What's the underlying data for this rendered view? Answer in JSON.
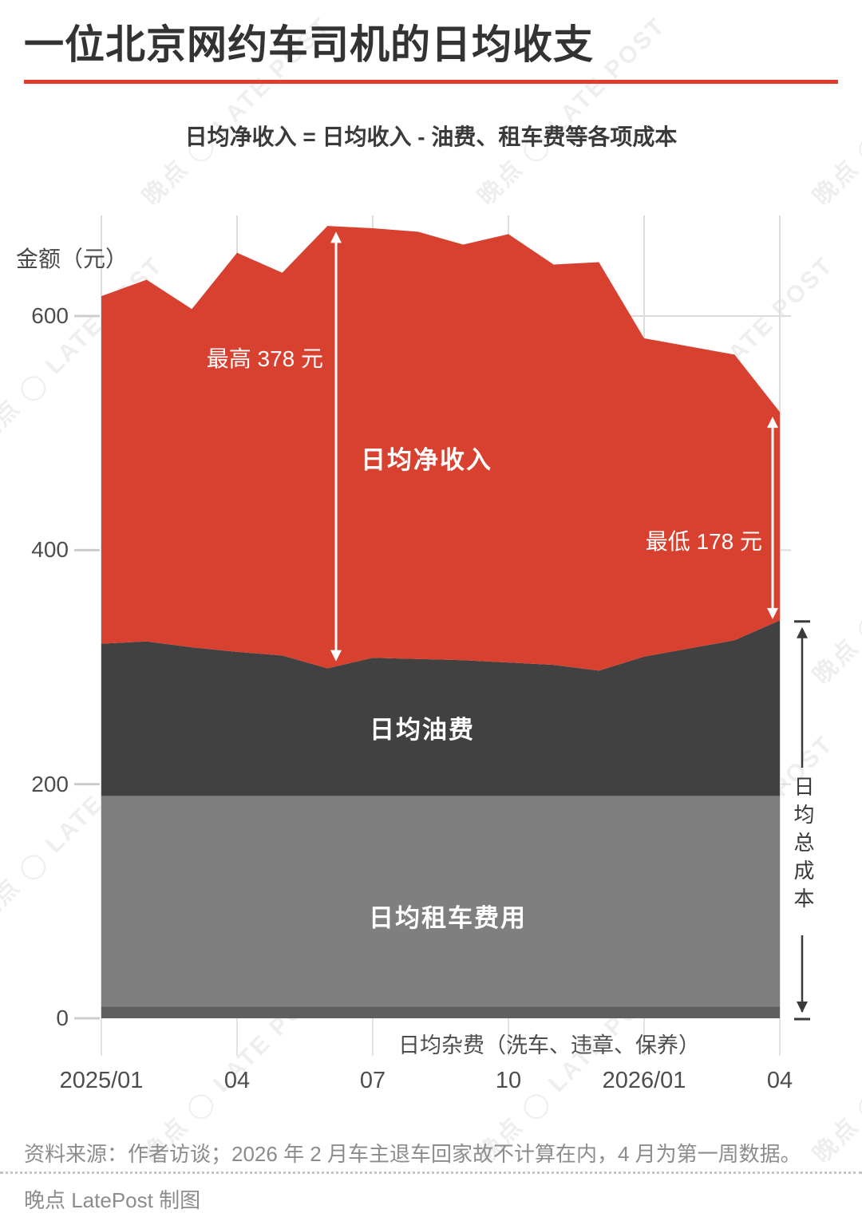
{
  "header": {
    "title": "一位北京网约车司机的日均收支",
    "subtitle": "日均净收入 = 日均收入 - 油费、租车费等各项成本",
    "rule_color": "#E03C2B"
  },
  "watermark": {
    "text": "晚点 ◯ LATE POST"
  },
  "chart_data": {
    "type": "area",
    "stacked": true,
    "ylabel": "金额（元）",
    "ylim": [
      0,
      686
    ],
    "grid": true,
    "y_ticks": [
      0,
      200,
      400,
      600
    ],
    "x_ticks": [
      {
        "m": 0,
        "label": "2025/01"
      },
      {
        "m": 3,
        "label": "04"
      },
      {
        "m": 6,
        "label": "07"
      },
      {
        "m": 9,
        "label": "10"
      },
      {
        "m": 12,
        "label": "2026/01"
      },
      {
        "m": 15,
        "label": "04"
      }
    ],
    "categories": [
      "2025/01",
      "2025/02",
      "2025/03",
      "2025/04",
      "2025/05",
      "2025/06",
      "2025/07",
      "2025/08",
      "2025/09",
      "2025/10",
      "2025/11",
      "2025/12",
      "2026/01",
      "2026/03",
      "2026/04"
    ],
    "month_index": [
      0,
      1,
      2,
      3,
      4,
      5,
      6,
      7,
      8,
      9,
      10,
      11,
      12,
      14,
      15
    ],
    "income_total": [
      617,
      631,
      606,
      654,
      637,
      677,
      675,
      672,
      661,
      670,
      644,
      646,
      581,
      567,
      518
    ],
    "total_cost": [
      320,
      322,
      317,
      313,
      310,
      299,
      308,
      307,
      306,
      304,
      302,
      297,
      309,
      323,
      340
    ],
    "net_income": [
      297,
      309,
      289,
      341,
      327,
      378,
      367,
      365,
      355,
      366,
      342,
      349,
      272,
      244,
      178
    ],
    "misc_top_value": 10,
    "rental_top_value": 190,
    "series": [
      {
        "name": "日均杂费（洗车、违章、保养）",
        "role": "misc",
        "color": "#5F5F5F"
      },
      {
        "name": "日均租车费用",
        "role": "rental",
        "color": "#7F7F7F"
      },
      {
        "name": "日均油费",
        "role": "oil",
        "color": "#414141"
      },
      {
        "name": "日均净收入",
        "role": "net",
        "color": "#D8412F"
      }
    ],
    "annotations": {
      "max": {
        "text": "最高 378 元",
        "value": 378,
        "month": "2025/06"
      },
      "min": {
        "text": "最低 178 元",
        "value": 178,
        "month": "2026/04"
      },
      "total_cost_bracket": {
        "text": "日均总成本"
      }
    },
    "grid_color": "#DCDCDC",
    "tick_text_color": "#4D4D4D"
  },
  "footer": {
    "source": "资料来源：作者访谈；2026 年 2 月车主退车回家故不计算在内，4 月为第一周数据。",
    "credit": "晚点 LatePost 制图"
  }
}
